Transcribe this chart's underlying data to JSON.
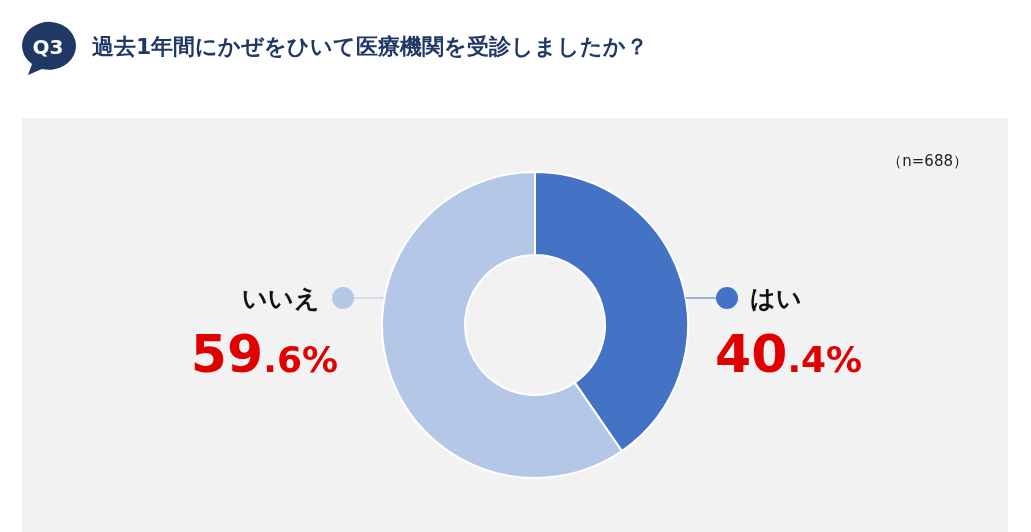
{
  "chart_data": {
    "type": "donut",
    "title": "過去1年間にかぜをひいて医療機関を受診しましたか？",
    "annotations": [
      "Q3",
      "（n=688）"
    ],
    "categories": [
      "はい",
      "いいえ"
    ],
    "values": [
      40.4,
      59.6
    ],
    "colors": [
      "#4472c4",
      "#b4c7e7"
    ],
    "value_labels": [
      "40.4%",
      "59.6%"
    ],
    "legend": "right"
  }
}
